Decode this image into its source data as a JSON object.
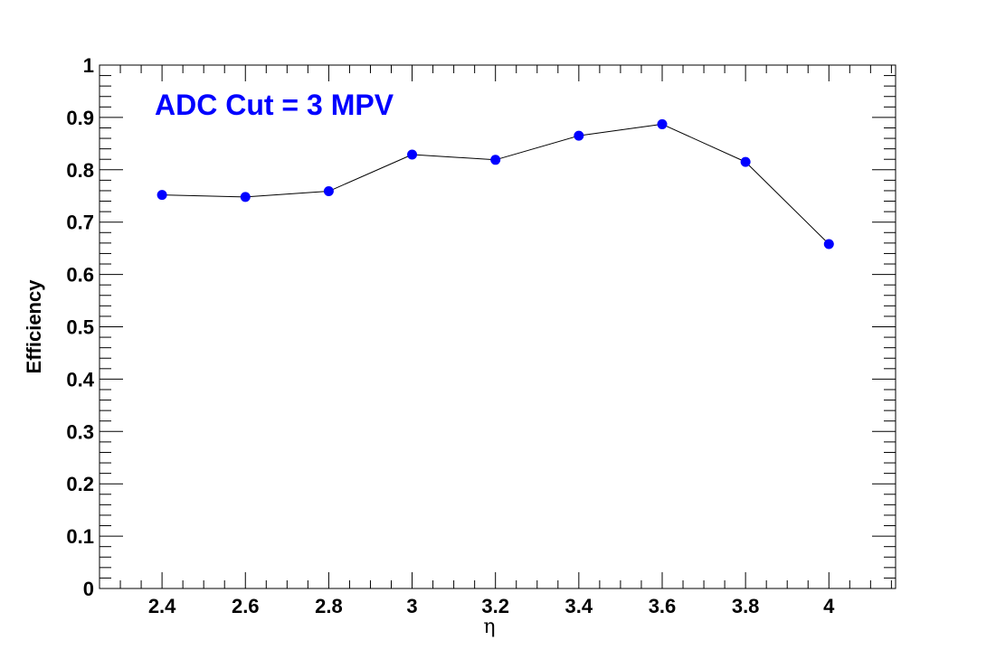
{
  "chart_data": {
    "type": "line",
    "title": "",
    "xlabel": "η",
    "ylabel": "Efficiency",
    "xlim": [
      2.25,
      4.16
    ],
    "ylim": [
      0,
      1
    ],
    "x_ticks": [
      2.4,
      2.6,
      2.8,
      3,
      3.2,
      3.4,
      3.6,
      3.8,
      4
    ],
    "x_tick_labels": [
      "2.4",
      "2.6",
      "2.8",
      "3",
      "3.2",
      "3.4",
      "3.6",
      "3.8",
      "4"
    ],
    "y_ticks": [
      0,
      0.1,
      0.2,
      0.3,
      0.4,
      0.5,
      0.6,
      0.7,
      0.8,
      0.9,
      1
    ],
    "y_tick_labels": [
      "0",
      "0.1",
      "0.2",
      "0.3",
      "0.4",
      "0.5",
      "0.6",
      "0.7",
      "0.8",
      "0.9",
      "1"
    ],
    "annotation": "ADC Cut = 3 MPV",
    "grid": false,
    "series": [
      {
        "x": [
          2.4,
          2.6,
          2.8,
          3.0,
          3.2,
          3.4,
          3.6,
          3.8,
          4.0
        ],
        "y": [
          0.752,
          0.748,
          0.759,
          0.829,
          0.819,
          0.865,
          0.887,
          0.815,
          0.658
        ],
        "marker_color": "#0000ff",
        "line_color": "#000000"
      }
    ]
  }
}
